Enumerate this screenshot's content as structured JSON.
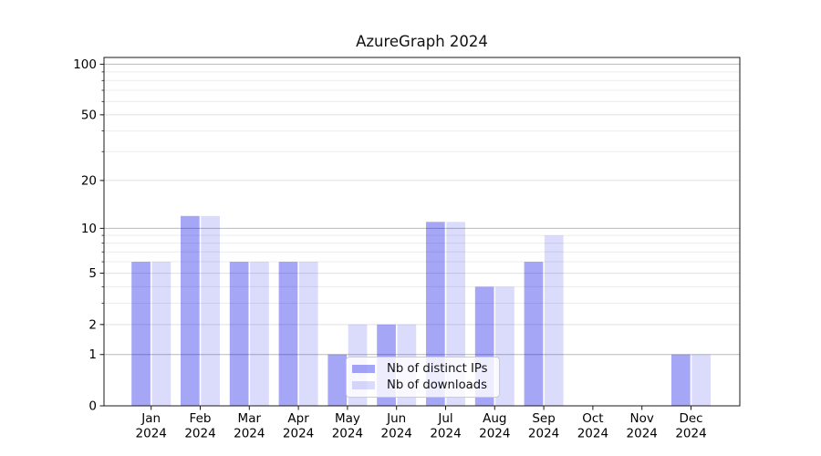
{
  "figure": {
    "title": "AzureGraph 2024"
  },
  "chart_data": {
    "type": "bar",
    "title": "AzureGraph 2024",
    "categories": [
      "Jan",
      "Feb",
      "Mar",
      "Apr",
      "May",
      "Jun",
      "Jul",
      "Aug",
      "Sep",
      "Oct",
      "Nov",
      "Dec"
    ],
    "category_year": "2024",
    "series": [
      {
        "name": "Nb of distinct IPs",
        "base_color": "#0000e6",
        "alpha": 0.35,
        "blended_hex": "#a6a6f6",
        "values": [
          6,
          12,
          6,
          6,
          1,
          2,
          11,
          4,
          6,
          0,
          0,
          1
        ]
      },
      {
        "name": "Nb of downloads",
        "base_color": "#0000e6",
        "alpha": 0.14,
        "blended_hex": "#dcdcfb",
        "values": [
          6,
          12,
          6,
          6,
          2,
          2,
          11,
          4,
          9,
          0,
          0,
          1
        ]
      }
    ],
    "yscale": "log1p",
    "ylim": [
      0,
      100
    ],
    "y_tick_values": [
      0,
      1,
      2,
      5,
      10,
      20,
      50,
      100
    ],
    "y_tick_labels": [
      "0",
      "1",
      "2",
      "5",
      "10",
      "20",
      "50",
      "100"
    ],
    "y_decade_gridlines": [
      1,
      10,
      100
    ],
    "y_labeled_minor_gridlines": [
      2,
      5,
      20,
      50
    ],
    "y_minor_gridlines": [
      3,
      4,
      6,
      7,
      8,
      9,
      30,
      40,
      60,
      70,
      80,
      90
    ],
    "grid": true,
    "legend": {
      "location": "lower center"
    },
    "colors": {
      "spine": "#1a1a1a",
      "tick_text": "#000000",
      "grid_major": "#b9b9b9",
      "grid_labeled_minor": "#e0e0e0",
      "grid_minor": "#ececec"
    }
  }
}
